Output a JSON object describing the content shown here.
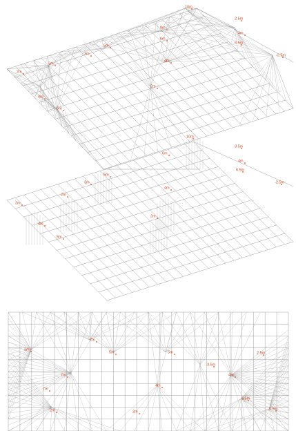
{
  "panels": [
    {
      "labels": [
        "10m",
        "2.5m",
        "4m",
        "8m",
        "6.5m",
        "6m",
        "-2.5m",
        "5m",
        "3m",
        "2m",
        "3m",
        "4m",
        "5m",
        "4m",
        "2m"
      ]
    },
    {
      "labels": [
        "10m",
        "3.5m",
        "6m",
        "4m",
        "6.5m",
        "5m",
        "3m",
        "-2.5m",
        "4m",
        "2m",
        "2m",
        "4m",
        "5m",
        "2m"
      ]
    },
    {
      "labels": [
        "2m",
        "3m",
        "5m",
        "5m",
        "3.5m",
        "2.5m",
        "7m",
        "4m",
        "4m",
        "2m",
        "7m",
        "5.5m",
        "2m",
        "1.5m"
      ]
    }
  ]
}
